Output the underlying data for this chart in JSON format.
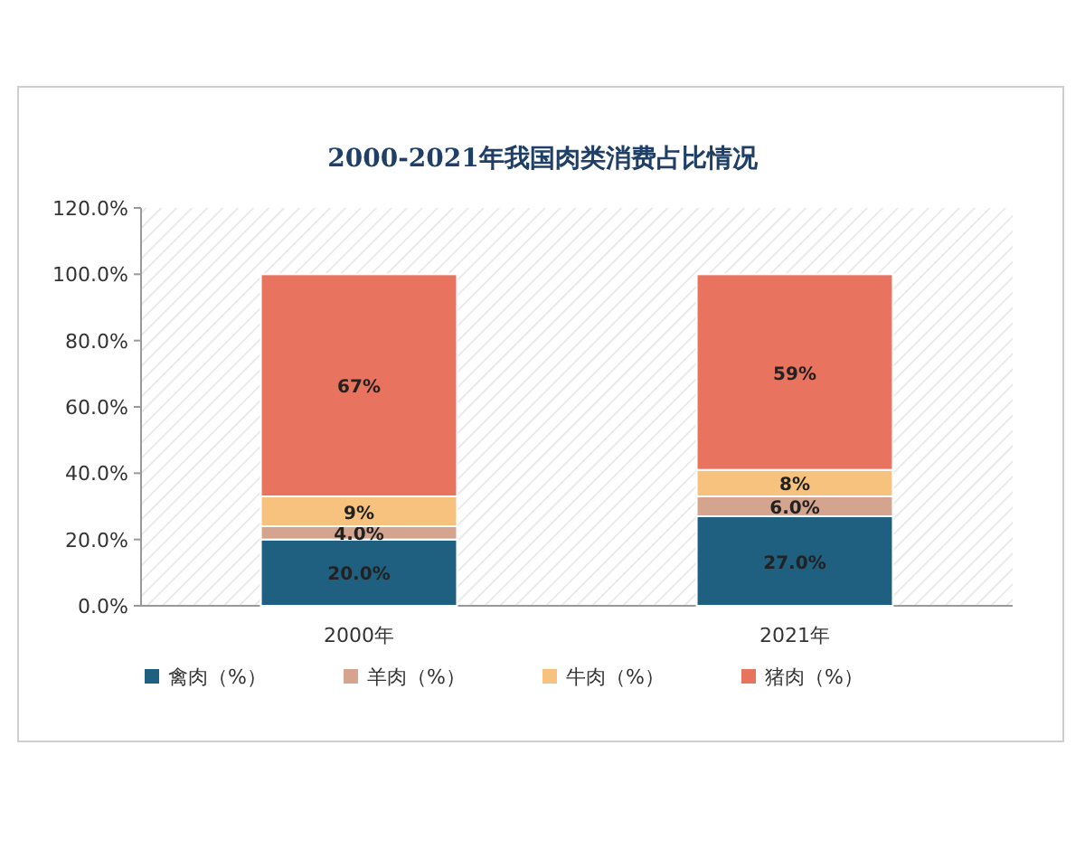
{
  "chart_data": {
    "type": "bar",
    "stacked": true,
    "title": "2000-2021年我国肉类消费占比情况",
    "categories": [
      "2000年",
      "2021年"
    ],
    "series": [
      {
        "name": "禽肉（%）",
        "color": "#1f5f7f",
        "values": [
          20.0,
          27.0
        ],
        "value_labels": [
          "20.0%",
          "27.0%"
        ]
      },
      {
        "name": "羊肉（%）",
        "color": "#d4a48e",
        "values": [
          4.0,
          6.0
        ],
        "value_labels": [
          "4.0%",
          "6.0%"
        ]
      },
      {
        "name": "牛肉（%）",
        "color": "#f7c27e",
        "values": [
          9,
          8
        ],
        "value_labels": [
          "9%",
          "8%"
        ]
      },
      {
        "name": "猪肉（%）",
        "color": "#e8735f",
        "values": [
          67,
          59
        ],
        "value_labels": [
          "67%",
          "59%"
        ]
      }
    ],
    "ylim": [
      0,
      120
    ],
    "yticks": [
      {
        "value": 0,
        "label": "0.0%"
      },
      {
        "value": 20,
        "label": "20.0%"
      },
      {
        "value": 40,
        "label": "40.0%"
      },
      {
        "value": 60,
        "label": "60.0%"
      },
      {
        "value": 80,
        "label": "80.0%"
      },
      {
        "value": 100,
        "label": "100.0%"
      },
      {
        "value": 120,
        "label": "120.0%"
      }
    ],
    "legend": "bottom"
  }
}
